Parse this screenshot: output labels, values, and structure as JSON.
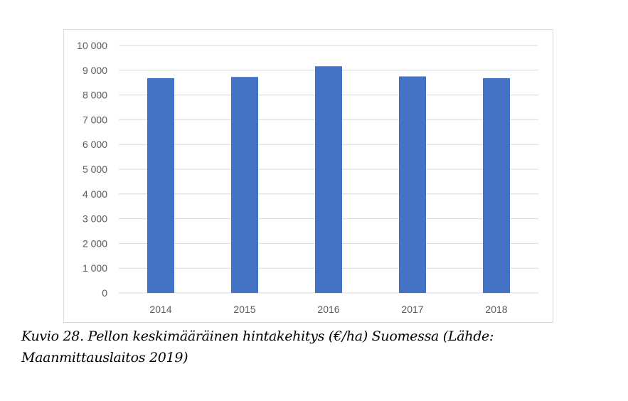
{
  "chart_data": {
    "type": "bar",
    "categories": [
      "2014",
      "2015",
      "2016",
      "2017",
      "2018"
    ],
    "values": [
      8680,
      8730,
      9160,
      8750,
      8680
    ],
    "ylim": [
      0,
      10000
    ],
    "yticks": [
      0,
      1000,
      2000,
      3000,
      4000,
      5000,
      6000,
      7000,
      8000,
      9000,
      10000
    ],
    "ytick_labels": [
      "0",
      "1 000",
      "2 000",
      "3 000",
      "4 000",
      "5 000",
      "6 000",
      "7 000",
      "8 000",
      "9 000",
      "10 000"
    ],
    "bar_color": "#4472C4",
    "grid": true,
    "legend": false
  },
  "caption": "Kuvio 28. Pellon keskimääräinen hintakehitys (€/ha) Suomessa (Lähde: Maanmittauslaitos 2019)"
}
